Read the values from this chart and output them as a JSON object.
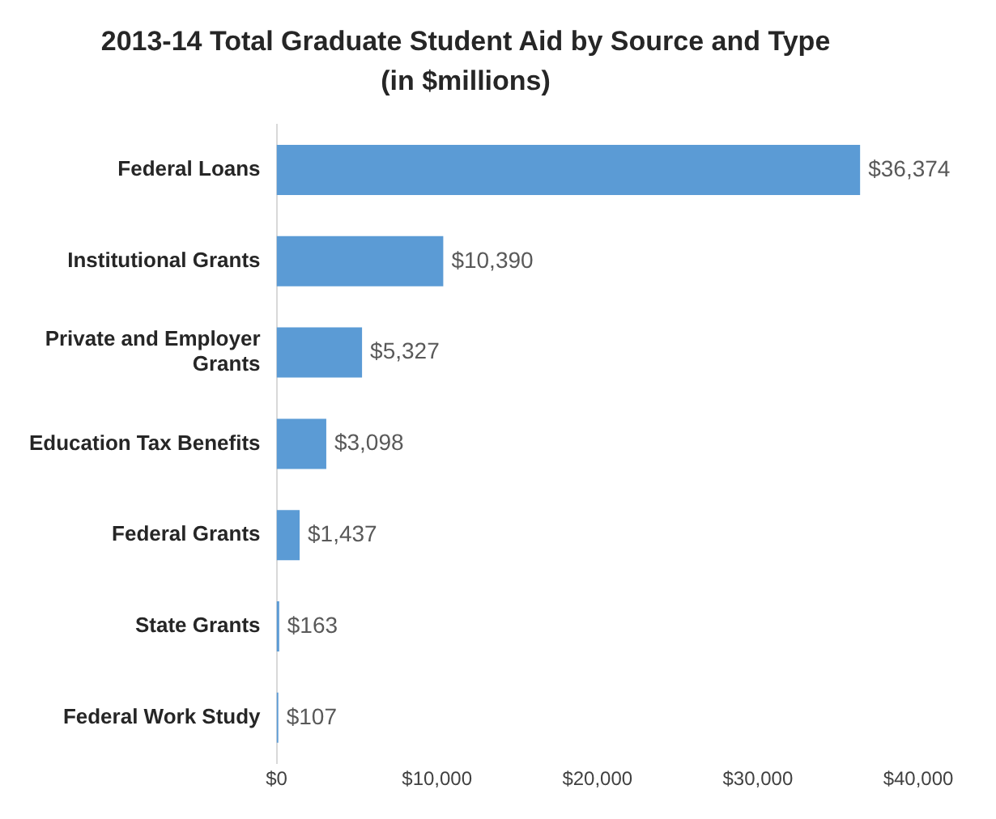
{
  "chart_data": {
    "type": "bar",
    "orientation": "horizontal",
    "title": "2013-14 Total Graduate Student Aid by Source and Type",
    "subtitle": "(in $millions)",
    "categories": [
      "Federal Loans",
      "Institutional Grants",
      "Private and Employer Grants",
      "Education Tax Benefits",
      "Federal Grants",
      "State Grants",
      "Federal Work Study"
    ],
    "values": [
      36374,
      10390,
      5327,
      3098,
      1437,
      163,
      107
    ],
    "value_labels": [
      "$36,374",
      "$10,390",
      "$5,327",
      "$3,098",
      "$1,437",
      "$163",
      "$107"
    ],
    "color": "#5b9bd5",
    "xlim": [
      0,
      40000
    ],
    "xticks": [
      {
        "value": 0,
        "label": "$0"
      },
      {
        "value": 10000,
        "label": "$10,000"
      },
      {
        "value": 20000,
        "label": "$20,000"
      },
      {
        "value": 30000,
        "label": "$30,000"
      },
      {
        "value": 40000,
        "label": "$40,000"
      }
    ],
    "grid": false,
    "legend": false
  }
}
